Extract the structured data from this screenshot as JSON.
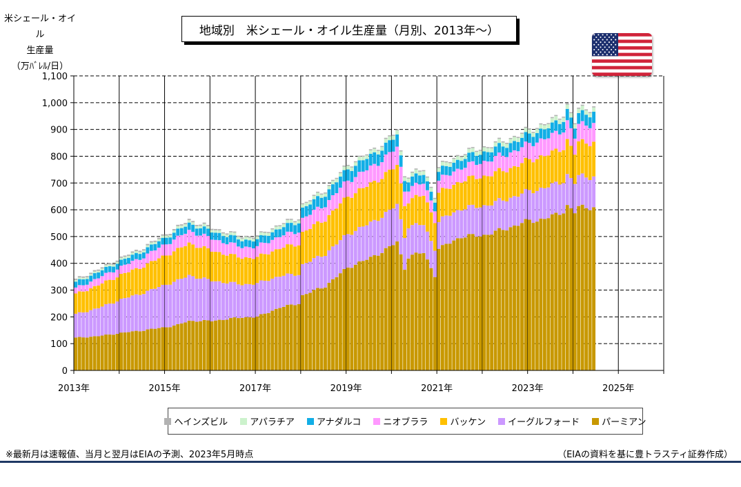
{
  "title": "地域別　米シェール・オイル生産量（月別、2013年～）",
  "y_axis_label_lines": [
    "米シェール・オイル",
    "生産量",
    "（万ﾊﾞﾚﾙ/日）"
  ],
  "footnote": "※最新月は速報値、当月と翌月はEIAの予測、2023年5月時点",
  "source": "（EIAの資料を基に豊トラスティ証券作成）",
  "flag_icon": "us-flag-icon",
  "colors": {
    "ヘインズビル": "#b2b2b2",
    "アパラチア": "#ccf2cc",
    "アナダルコ": "#12aee6",
    "ニオブララ": "#ff99ff",
    "バッケン": "#ffc000",
    "イーグルフォード": "#cc99ff",
    "パーミアン": "#c89800"
  },
  "chart_data": {
    "type": "bar",
    "stacked": true,
    "title": "地域別　米シェール・オイル生産量（月別、2013年～）",
    "ylabel": "米シェール・オイル 生産量（万ﾊﾞﾚﾙ/日）",
    "xlabel": "",
    "ylim": [
      0,
      1100
    ],
    "yticks": [
      0,
      100,
      200,
      300,
      400,
      500,
      600,
      700,
      800,
      900,
      1000,
      1100
    ],
    "ytick_labels": [
      "0",
      "100",
      "200",
      "300",
      "400",
      "500",
      "600",
      "700",
      "800",
      "900",
      "1,000",
      "1,100"
    ],
    "xtick_labels": [
      "2013年",
      "2015年",
      "2017年",
      "2019年",
      "2021年",
      "2023年",
      "2025年"
    ],
    "x_range": [
      "2013-01",
      "2025-12"
    ],
    "grid": true,
    "legend_position": "bottom",
    "months": [
      "2013-01",
      "2013-07",
      "2014-01",
      "2014-07",
      "2015-01",
      "2015-04",
      "2015-07",
      "2016-01",
      "2016-07",
      "2016-09",
      "2017-01",
      "2017-07",
      "2017-12",
      "2018-01",
      "2018-07",
      "2019-01",
      "2019-07",
      "2019-12",
      "2020-02",
      "2020-04",
      "2020-05",
      "2020-06",
      "2020-09",
      "2020-12",
      "2021-01",
      "2021-02",
      "2021-03",
      "2021-07",
      "2022-01",
      "2022-07",
      "2023-01",
      "2023-03",
      "2023-07",
      "2023-10",
      "2023-11",
      "2024-01",
      "2024-02",
      "2024-06"
    ],
    "series": [
      {
        "name": "パーミアン",
        "values": [
          122,
          128,
          140,
          150,
          162,
          170,
          185,
          185,
          195,
          198,
          200,
          235,
          250,
          280,
          315,
          385,
          420,
          460,
          480,
          380,
          425,
          430,
          440,
          355,
          455,
          460,
          470,
          500,
          505,
          530,
          560,
          560,
          575,
          595,
          615,
          590,
          610,
          610
        ]
      },
      {
        "name": "イーグルフォード",
        "values": [
          88,
          105,
          125,
          140,
          160,
          165,
          170,
          150,
          130,
          123,
          125,
          118,
          110,
          115,
          120,
          125,
          130,
          135,
          140,
          120,
          115,
          110,
          105,
          100,
          100,
          105,
          105,
          105,
          110,
          110,
          110,
          115,
          115,
          115,
          115,
          110,
          115,
          115
        ]
      },
      {
        "name": "バッケン",
        "values": [
          75,
          85,
          92,
          100,
          110,
          115,
          120,
          112,
          102,
          100,
          97,
          104,
          112,
          120,
          130,
          140,
          145,
          148,
          145,
          120,
          95,
          100,
          110,
          105,
          110,
          105,
          100,
          105,
          110,
          110,
          115,
          120,
          120,
          125,
          130,
          110,
          125,
          130
        ]
      },
      {
        "name": "ニオブララ",
        "values": [
          22,
          27,
          30,
          35,
          42,
          45,
          47,
          45,
          42,
          40,
          40,
          45,
          48,
          52,
          55,
          60,
          62,
          65,
          68,
          55,
          45,
          45,
          45,
          45,
          45,
          48,
          50,
          50,
          55,
          58,
          60,
          62,
          65,
          67,
          70,
          60,
          65,
          70
        ]
      },
      {
        "name": "アナダルコ",
        "values": [
          22,
          22,
          22,
          23,
          25,
          26,
          27,
          27,
          27,
          26,
          26,
          30,
          35,
          38,
          40,
          42,
          43,
          44,
          45,
          40,
          35,
          35,
          33,
          33,
          33,
          33,
          33,
          33,
          35,
          35,
          35,
          36,
          38,
          40,
          42,
          38,
          40,
          42
        ]
      },
      {
        "name": "アパラチア",
        "values": [
          6,
          6,
          7,
          7,
          8,
          9,
          9,
          9,
          10,
          10,
          10,
          11,
          11,
          12,
          12,
          13,
          13,
          14,
          15,
          14,
          14,
          14,
          14,
          14,
          14,
          14,
          14,
          14,
          15,
          15,
          15,
          15,
          16,
          16,
          16,
          16,
          16,
          16
        ]
      },
      {
        "name": "ヘインズビル",
        "values": [
          5,
          5,
          5,
          5,
          5,
          5,
          5,
          5,
          4,
          4,
          4,
          4,
          4,
          4,
          4,
          4,
          4,
          4,
          4,
          4,
          4,
          4,
          4,
          4,
          4,
          4,
          4,
          4,
          4,
          4,
          4,
          4,
          4,
          4,
          4,
          4,
          4,
          4
        ]
      }
    ]
  }
}
